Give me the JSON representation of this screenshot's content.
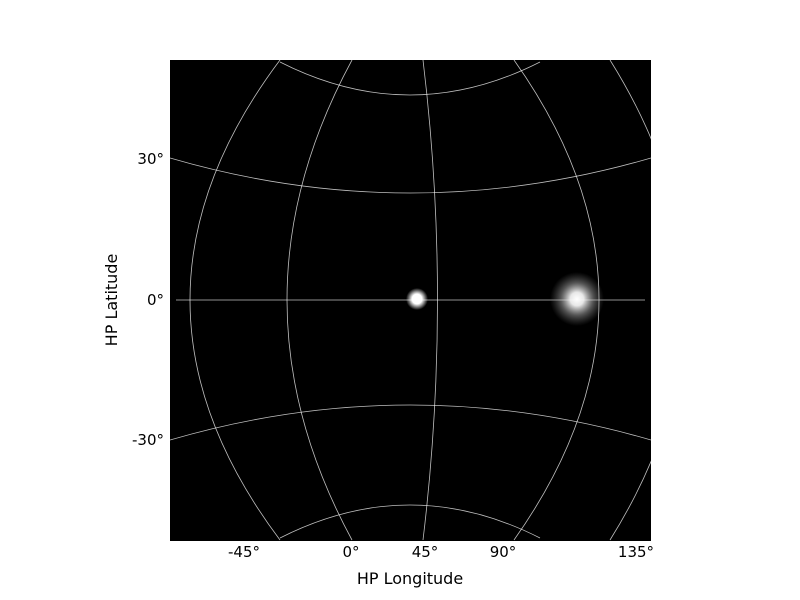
{
  "chart_data": {
    "type": "heatmap",
    "title": "",
    "xlabel": "HP Longitude",
    "ylabel": "HP Latitude",
    "background": "#000000",
    "grid": true,
    "grid_color": "#ffffff",
    "x_ticks": [
      {
        "value": -45,
        "label": "-45°"
      },
      {
        "value": 0,
        "label": "0°"
      },
      {
        "value": 45,
        "label": "45°"
      },
      {
        "value": 90,
        "label": "90°"
      },
      {
        "value": 135,
        "label": "135°"
      }
    ],
    "y_ticks": [
      {
        "value": 30,
        "label": "30°"
      },
      {
        "value": 0,
        "label": "0°"
      },
      {
        "value": -30,
        "label": "-30°"
      }
    ],
    "sources": [
      {
        "lon": 42,
        "lat": 0,
        "kind": "compact bright source"
      },
      {
        "lon": 115,
        "lat": 0,
        "kind": "diffuse source"
      }
    ]
  }
}
